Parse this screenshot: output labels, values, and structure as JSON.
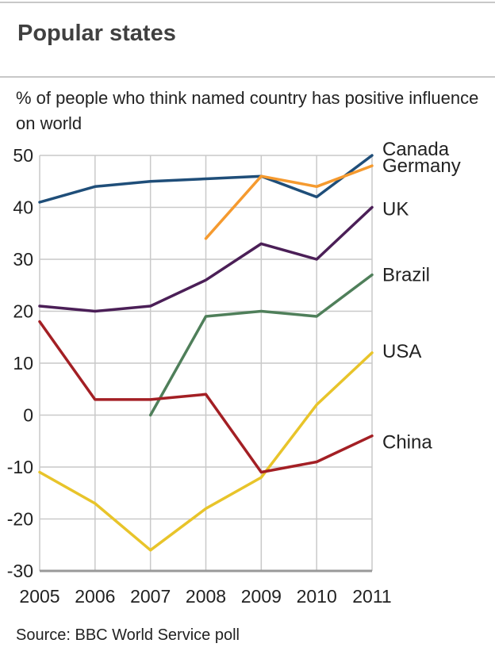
{
  "title": "Popular states",
  "subtitle": "% of people who think named country has positive influence on world",
  "source": "Source: BBC World Service poll",
  "chart_data": {
    "type": "line",
    "x": [
      2005,
      2006,
      2007,
      2008,
      2009,
      2010,
      2011
    ],
    "xlim": [
      2005,
      2011
    ],
    "ylim": [
      -30,
      50
    ],
    "yticks": [
      50,
      40,
      30,
      20,
      10,
      0,
      -10,
      -20,
      -30
    ],
    "grid": true,
    "legend": "labels at right end of lines",
    "series": [
      {
        "name": "Canada",
        "color": "#1f4e79",
        "values": [
          41,
          44,
          45,
          45.5,
          46,
          42,
          50
        ]
      },
      {
        "name": "Germany",
        "color": "#f59a2f",
        "values": [
          null,
          null,
          null,
          34,
          46,
          44,
          48
        ]
      },
      {
        "name": "UK",
        "color": "#4b1f57",
        "values": [
          21,
          20,
          21,
          26,
          33,
          30,
          40
        ]
      },
      {
        "name": "Brazil",
        "color": "#4f7f5a",
        "values": [
          null,
          null,
          0,
          19,
          20,
          19,
          27
        ]
      },
      {
        "name": "USA",
        "color": "#e8c42a",
        "values": [
          -11,
          -17,
          -26,
          -18,
          -12,
          2,
          12
        ]
      },
      {
        "name": "China",
        "color": "#a31f24",
        "values": [
          18,
          3,
          3,
          4,
          -11,
          -9,
          -4
        ]
      }
    ]
  }
}
